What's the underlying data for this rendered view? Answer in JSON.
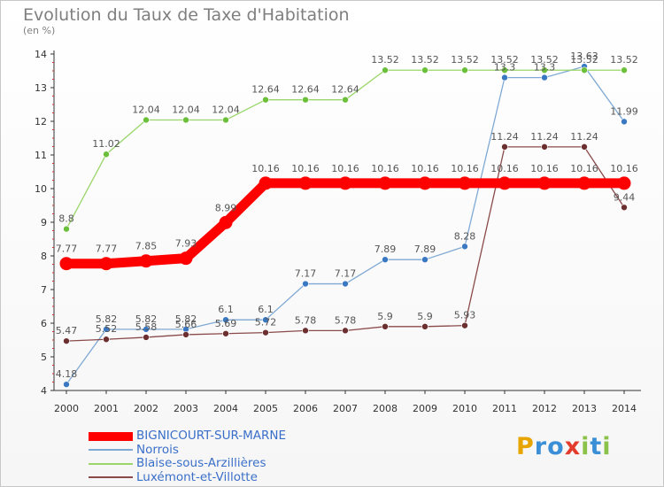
{
  "title": "Evolution du Taux de Taxe d'Habitation",
  "subtitle": "(en %)",
  "logo": {
    "letters": [
      "P",
      "r",
      "o",
      "x",
      "i",
      "t",
      "i"
    ],
    "colors": [
      "#e8a400",
      "#3b8fd6",
      "#3b8fd6",
      "#e43c2c",
      "#8bc34a",
      "#3b8fd6",
      "#8bc34a"
    ]
  },
  "chart_data": {
    "type": "line",
    "x": [
      "2000",
      "2001",
      "2002",
      "2003",
      "2004",
      "2005",
      "2006",
      "2007",
      "2008",
      "2009",
      "2010",
      "2011",
      "2012",
      "2013",
      "2014"
    ],
    "ylim": [
      4,
      14
    ],
    "yticks": [
      "4",
      "5",
      "6",
      "7",
      "8",
      "9",
      "10",
      "11",
      "12",
      "13",
      "14"
    ],
    "grid": false,
    "legend_position": "bottom",
    "series": [
      {
        "name": "BIGNICOURT-SUR-MARNE",
        "color": "#ff0000",
        "emphasis": true,
        "values": [
          7.77,
          7.77,
          7.85,
          7.93,
          8.99,
          10.16,
          10.16,
          10.16,
          10.16,
          10.16,
          10.16,
          10.16,
          10.16,
          10.16,
          10.16
        ],
        "labels": [
          "7.77",
          "7.77",
          "7.85",
          "7.93",
          "8.99",
          "10.16",
          "10.16",
          "10.16",
          "10.16",
          "10.16",
          "10.16",
          "10.16",
          "10.16",
          "10.16",
          "10.16"
        ]
      },
      {
        "name": "Norrois",
        "color": "#7fa9d4",
        "marker": "#3a78c2",
        "values": [
          4.18,
          5.82,
          5.82,
          5.82,
          6.1,
          6.1,
          7.17,
          7.17,
          7.89,
          7.89,
          8.28,
          13.3,
          13.3,
          13.63,
          11.99
        ],
        "labels": [
          "4.18",
          "5.82",
          "5.82",
          "5.82",
          "6.1",
          "6.1",
          "7.17",
          "7.17",
          "7.89",
          "7.89",
          "8.28",
          "13.3",
          "13.3",
          "13.63",
          "11.99"
        ]
      },
      {
        "name": "Blaise-sous-Arzillières",
        "color": "#9ad66a",
        "marker": "#6cbf3a",
        "values": [
          8.8,
          11.02,
          12.04,
          12.04,
          12.04,
          12.64,
          12.64,
          12.64,
          13.52,
          13.52,
          13.52,
          13.52,
          13.52,
          13.52,
          13.52
        ],
        "labels": [
          "8.8",
          "11.02",
          "12.04",
          "12.04",
          "12.04",
          "12.64",
          "12.64",
          "12.64",
          "13.52",
          "13.52",
          "13.52",
          "13.52",
          "13.52",
          "13.52",
          "13.52"
        ]
      },
      {
        "name": "Luxémont-et-Villotte",
        "color": "#8b4a4a",
        "marker": "#6b2f2f",
        "values": [
          5.47,
          5.52,
          5.58,
          5.66,
          5.69,
          5.72,
          5.78,
          5.78,
          5.9,
          5.9,
          5.93,
          11.24,
          11.24,
          11.24,
          9.44
        ],
        "labels": [
          "5.47",
          "5.52",
          "5.58",
          "5.66",
          "5.69",
          "5.72",
          "5.78",
          "5.78",
          "5.9",
          "5.9",
          "5.93",
          "11.24",
          "11.24",
          "11.24",
          "9.44"
        ]
      }
    ]
  }
}
